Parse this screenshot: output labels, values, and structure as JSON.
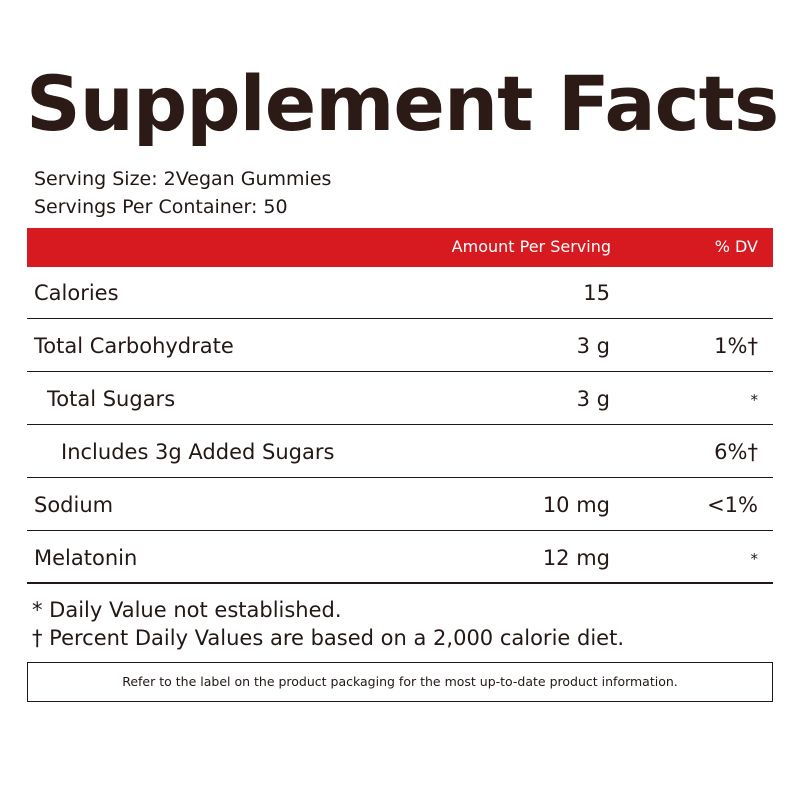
{
  "title": "Supplement Facts",
  "serving": {
    "size": "Serving Size: 2Vegan Gummies",
    "per_container": "Servings Per Container: 50"
  },
  "table": {
    "header": {
      "amount": "Amount Per Serving",
      "dv": "% DV"
    },
    "rows": [
      {
        "name": "Calories",
        "amount": "15"
      },
      {
        "name": "Total Carbohydrate",
        "amount": "3 g",
        "dv": "1%†"
      },
      {
        "name": "Total Sugars",
        "amount": "3 g",
        "dv": "*"
      },
      {
        "name": "Includes 3g Added Sugars",
        "dv": "6%†"
      },
      {
        "name": "Sodium",
        "amount": "10 mg",
        "dv": "<1%"
      },
      {
        "name": "Melatonin",
        "amount": "12 mg",
        "dv": "*"
      }
    ]
  },
  "footnotes": [
    "* Daily Value not established.",
    "† Percent Daily Values are based on a 2,000 calorie diet."
  ],
  "notice": "Refer to the label on the product packaging for the most up-to-date product information."
}
